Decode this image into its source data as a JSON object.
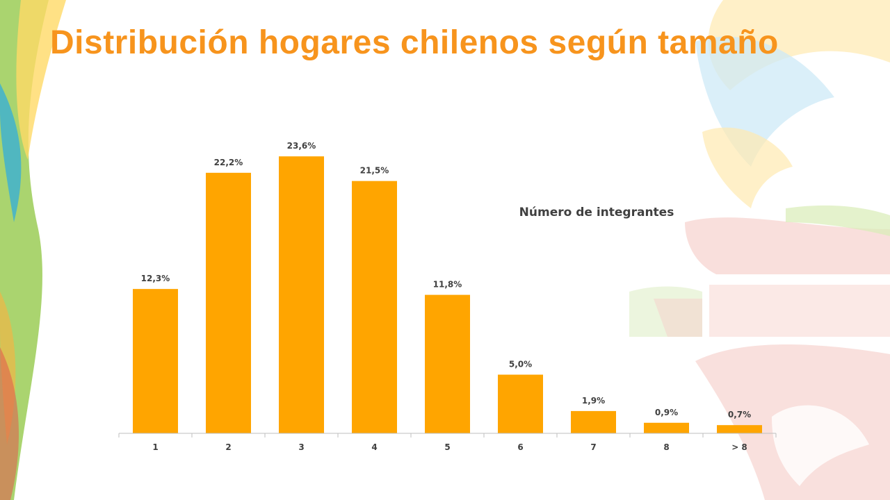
{
  "title": "Distribución hogares chilenos según tamaño",
  "colors": {
    "title": "#F7941D",
    "bar": "#FFA500",
    "text": "#404040",
    "axis": "#BFBFBF"
  },
  "chart_data": {
    "type": "bar",
    "title": "Distribución hogares chilenos según tamaño",
    "annotation": "Número de integrantes",
    "categories": [
      "1",
      "2",
      "3",
      "4",
      "5",
      "6",
      "7",
      "8",
      "> 8"
    ],
    "values": [
      12.3,
      22.2,
      23.6,
      21.5,
      11.8,
      5.0,
      1.9,
      0.9,
      0.7
    ],
    "data_labels": [
      "12,3%",
      "22,2%",
      "23,6%",
      "21,5%",
      "11,8%",
      "5,0%",
      "1,9%",
      "0,9%",
      "0,7%"
    ],
    "unit": "%",
    "xlabel": "",
    "ylabel": "",
    "ylim": [
      0,
      25
    ],
    "grid": false,
    "legend": "none"
  }
}
